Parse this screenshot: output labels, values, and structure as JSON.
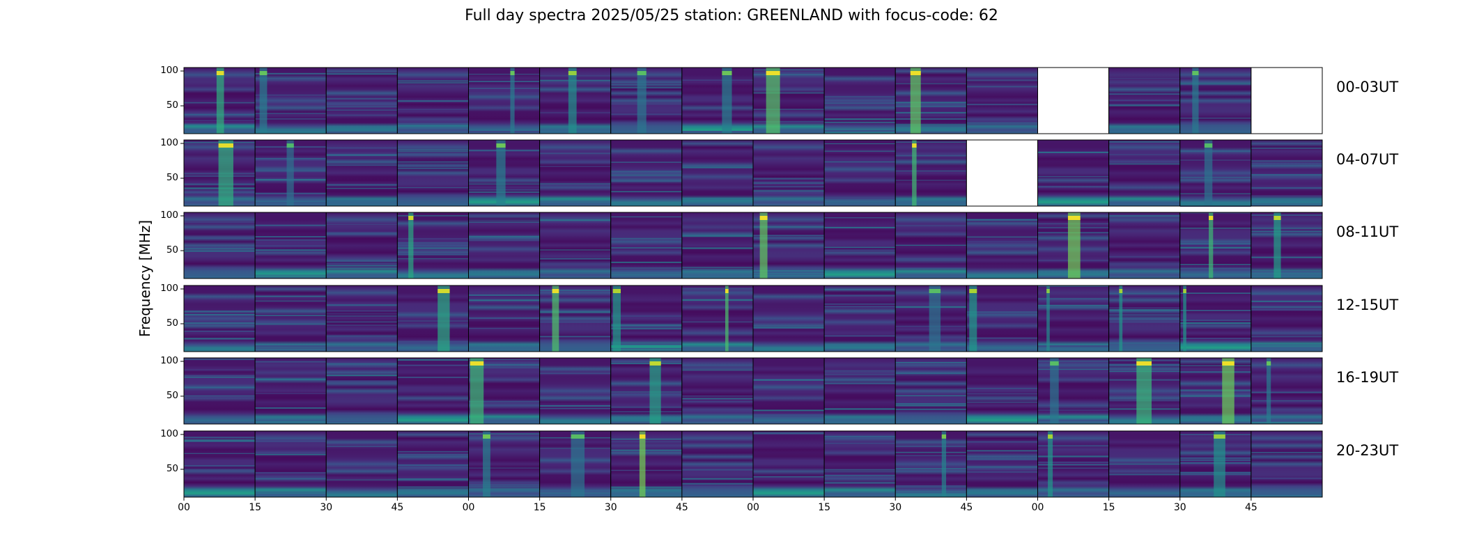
{
  "title": "Full day spectra 2025/05/25 station: GREENLAND with focus-code: 62",
  "ylabel": "Frequency [MHz]",
  "colors": {
    "background": "#ffffff",
    "panel_low": "#440154",
    "panel_mid": "#31688e",
    "panel_high": "#fde725",
    "missing": "#ffffff"
  },
  "chart_data": {
    "type": "heatmap",
    "title": "Full day spectra 2025/05/25 station: GREENLAND with focus-code: 62",
    "ylabel": "Frequency [MHz]",
    "colormap": "viridis",
    "ylim": [
      10,
      105
    ],
    "yticks": [
      "50",
      "100"
    ],
    "xtick_labels": [
      "00",
      "15",
      "30",
      "45",
      "00",
      "15",
      "30",
      "45",
      "00",
      "15",
      "30",
      "45",
      "00",
      "15",
      "30",
      "45"
    ],
    "panels_per_row": 16,
    "panel_minutes": 15,
    "rows": [
      {
        "label": "00-03UT",
        "missing_panels": [
          12,
          15
        ]
      },
      {
        "label": "04-07UT",
        "missing_panels": [
          11
        ]
      },
      {
        "label": "08-11UT",
        "missing_panels": []
      },
      {
        "label": "12-15UT",
        "missing_panels": []
      },
      {
        "label": "16-19UT",
        "missing_panels": []
      },
      {
        "label": "20-23UT",
        "missing_panels": []
      }
    ]
  }
}
